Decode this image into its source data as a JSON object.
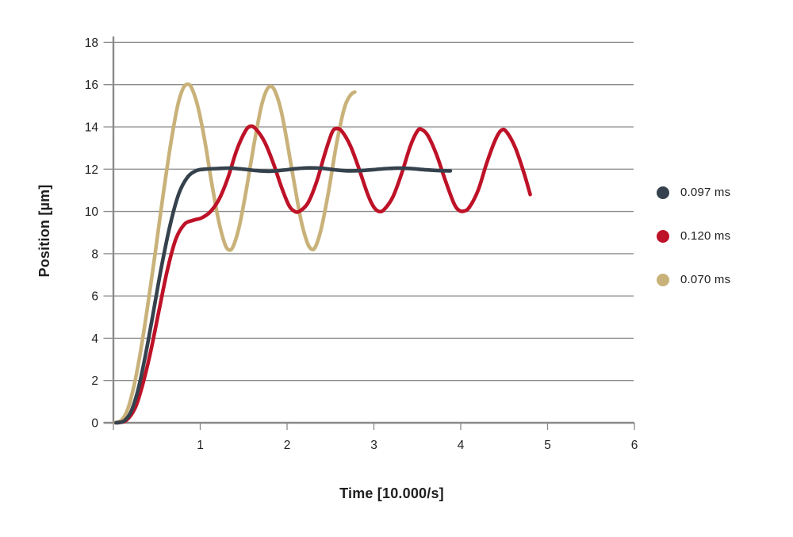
{
  "chart_data": {
    "type": "line",
    "title": "",
    "xlabel": "Time [10.000/s]",
    "ylabel": "Position [µm]",
    "xlim": [
      0,
      6
    ],
    "ylim": [
      0,
      18
    ],
    "x_ticks": [
      1,
      2,
      3,
      4,
      5,
      6
    ],
    "y_ticks": [
      0,
      2,
      4,
      6,
      8,
      10,
      12,
      14,
      16,
      18
    ],
    "grid": "horizontal-only",
    "legend_position": "right",
    "axis_color": "#8a8a8a",
    "text_color": "#1f1f1f",
    "background": "#ffffff",
    "series": [
      {
        "name": "0.097 ms",
        "color": "#35424d",
        "points": [
          [
            0.03,
            0
          ],
          [
            0.12,
            0.08
          ],
          [
            0.2,
            0.5
          ],
          [
            0.28,
            1.5
          ],
          [
            0.36,
            3.0
          ],
          [
            0.45,
            5.0
          ],
          [
            0.55,
            7.3
          ],
          [
            0.65,
            9.3
          ],
          [
            0.75,
            10.8
          ],
          [
            0.85,
            11.6
          ],
          [
            0.95,
            11.92
          ],
          [
            1.05,
            12.0
          ],
          [
            1.2,
            12.03
          ],
          [
            1.35,
            12.05
          ],
          [
            1.5,
            12.0
          ],
          [
            1.65,
            11.93
          ],
          [
            1.8,
            11.9
          ],
          [
            1.95,
            11.95
          ],
          [
            2.1,
            12.02
          ],
          [
            2.25,
            12.06
          ],
          [
            2.4,
            12.04
          ],
          [
            2.55,
            11.97
          ],
          [
            2.7,
            11.92
          ],
          [
            2.85,
            11.93
          ],
          [
            3.0,
            11.98
          ],
          [
            3.15,
            12.03
          ],
          [
            3.3,
            12.05
          ],
          [
            3.45,
            12.02
          ],
          [
            3.6,
            11.97
          ],
          [
            3.75,
            11.93
          ],
          [
            3.88,
            11.92
          ]
        ]
      },
      {
        "name": "0.120 ms",
        "color": "#be1228",
        "points": [
          [
            0.05,
            0
          ],
          [
            0.15,
            0.12
          ],
          [
            0.25,
            0.7
          ],
          [
            0.33,
            1.7
          ],
          [
            0.42,
            3.2
          ],
          [
            0.52,
            5.2
          ],
          [
            0.62,
            7.2
          ],
          [
            0.72,
            8.7
          ],
          [
            0.82,
            9.4
          ],
          [
            0.92,
            9.58
          ],
          [
            1.02,
            9.7
          ],
          [
            1.12,
            10.0
          ],
          [
            1.22,
            10.6
          ],
          [
            1.32,
            11.6
          ],
          [
            1.42,
            12.9
          ],
          [
            1.52,
            13.8
          ],
          [
            1.58,
            14.03
          ],
          [
            1.64,
            13.9
          ],
          [
            1.74,
            13.3
          ],
          [
            1.84,
            12.3
          ],
          [
            1.94,
            11.1
          ],
          [
            2.02,
            10.3
          ],
          [
            2.08,
            10.02
          ],
          [
            2.14,
            10.0
          ],
          [
            2.24,
            10.4
          ],
          [
            2.34,
            11.4
          ],
          [
            2.44,
            12.8
          ],
          [
            2.52,
            13.75
          ],
          [
            2.57,
            13.92
          ],
          [
            2.63,
            13.8
          ],
          [
            2.73,
            13.1
          ],
          [
            2.83,
            12.0
          ],
          [
            2.93,
            10.8
          ],
          [
            3.0,
            10.2
          ],
          [
            3.06,
            10.0
          ],
          [
            3.12,
            10.1
          ],
          [
            3.22,
            10.7
          ],
          [
            3.32,
            11.8
          ],
          [
            3.42,
            13.1
          ],
          [
            3.5,
            13.8
          ],
          [
            3.55,
            13.88
          ],
          [
            3.62,
            13.6
          ],
          [
            3.72,
            12.7
          ],
          [
            3.82,
            11.5
          ],
          [
            3.92,
            10.4
          ],
          [
            3.98,
            10.05
          ],
          [
            4.04,
            10.02
          ],
          [
            4.1,
            10.2
          ],
          [
            4.2,
            11.0
          ],
          [
            4.3,
            12.3
          ],
          [
            4.4,
            13.4
          ],
          [
            4.47,
            13.85
          ],
          [
            4.53,
            13.75
          ],
          [
            4.63,
            13.0
          ],
          [
            4.73,
            11.8
          ],
          [
            4.8,
            10.8
          ]
        ]
      },
      {
        "name": "0.070 ms",
        "color": "#c9b27a",
        "points": [
          [
            0.02,
            0
          ],
          [
            0.1,
            0.15
          ],
          [
            0.17,
            0.7
          ],
          [
            0.24,
            1.8
          ],
          [
            0.31,
            3.3
          ],
          [
            0.39,
            5.4
          ],
          [
            0.48,
            8.0
          ],
          [
            0.57,
            10.7
          ],
          [
            0.66,
            13.2
          ],
          [
            0.74,
            15.0
          ],
          [
            0.8,
            15.8
          ],
          [
            0.85,
            16.02
          ],
          [
            0.9,
            15.85
          ],
          [
            0.97,
            15.0
          ],
          [
            1.05,
            13.4
          ],
          [
            1.13,
            11.4
          ],
          [
            1.21,
            9.6
          ],
          [
            1.28,
            8.5
          ],
          [
            1.33,
            8.18
          ],
          [
            1.38,
            8.35
          ],
          [
            1.45,
            9.3
          ],
          [
            1.53,
            11.0
          ],
          [
            1.62,
            13.2
          ],
          [
            1.7,
            14.9
          ],
          [
            1.76,
            15.7
          ],
          [
            1.81,
            15.92
          ],
          [
            1.86,
            15.7
          ],
          [
            1.93,
            14.8
          ],
          [
            2.0,
            13.3
          ],
          [
            2.08,
            11.4
          ],
          [
            2.16,
            9.6
          ],
          [
            2.23,
            8.55
          ],
          [
            2.28,
            8.22
          ],
          [
            2.33,
            8.35
          ],
          [
            2.4,
            9.3
          ],
          [
            2.48,
            11.0
          ],
          [
            2.57,
            13.2
          ],
          [
            2.66,
            14.9
          ],
          [
            2.73,
            15.5
          ],
          [
            2.78,
            15.65
          ]
        ]
      }
    ]
  }
}
